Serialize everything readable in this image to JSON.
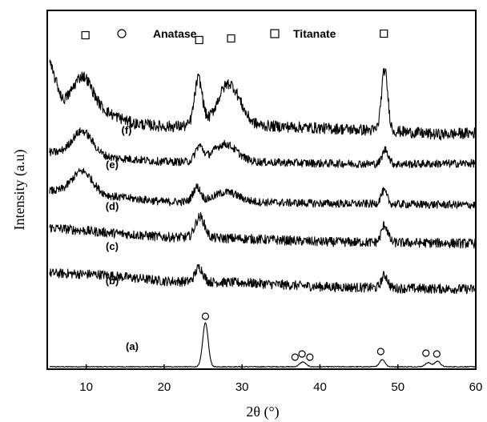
{
  "chart_data": {
    "type": "line",
    "title": "",
    "xlabel": "2θ (°)",
    "ylabel": "Intensity (a.u)",
    "xlim": [
      5,
      60
    ],
    "xticks": [
      "10",
      "20",
      "30",
      "40",
      "50",
      "60"
    ],
    "xtick_values": [
      10,
      20,
      30,
      40,
      50,
      60
    ],
    "yticks_shown": false,
    "grid": false,
    "legend": [
      {
        "name": "Anatase",
        "marker": "circle"
      },
      {
        "name": "Titanate",
        "marker": "square"
      }
    ],
    "legend_position": "top-center",
    "series": [
      {
        "name": "(a)",
        "offset": 0,
        "noise": 0.5,
        "peaks": [
          [
            25.3,
            55,
            0.35
          ],
          [
            37.8,
            6,
            0.4
          ],
          [
            48.0,
            9,
            0.35
          ],
          [
            53.9,
            5,
            0.4
          ],
          [
            55.1,
            7,
            0.35
          ]
        ],
        "markers": [
          {
            "type": "circle",
            "x": 25.3,
            "y": 63
          },
          {
            "type": "circle",
            "x": 36.8,
            "y": 12
          },
          {
            "type": "circle",
            "x": 37.7,
            "y": 16
          },
          {
            "type": "circle",
            "x": 38.7,
            "y": 12
          },
          {
            "type": "circle",
            "x": 47.8,
            "y": 19
          },
          {
            "type": "circle",
            "x": 53.6,
            "y": 17
          },
          {
            "type": "circle",
            "x": 55.0,
            "y": 16
          }
        ]
      },
      {
        "name": "(b)",
        "offset": 95,
        "noise": 6,
        "baseline": [
          [
            5,
            22
          ],
          [
            12,
            20
          ],
          [
            20,
            12
          ],
          [
            30,
            10
          ],
          [
            40,
            5
          ],
          [
            50,
            3
          ],
          [
            60,
            2
          ]
        ],
        "peaks": [
          [
            24.5,
            18,
            0.5
          ],
          [
            48.3,
            16,
            0.4
          ]
        ],
        "markers": []
      },
      {
        "name": "(c)",
        "offset": 152,
        "noise": 6,
        "baseline": [
          [
            5,
            22
          ],
          [
            12,
            16
          ],
          [
            20,
            10
          ],
          [
            30,
            8
          ],
          [
            40,
            4
          ],
          [
            50,
            3
          ],
          [
            60,
            2
          ]
        ],
        "peaks": [
          [
            24.6,
            26,
            0.6
          ],
          [
            48.3,
            22,
            0.4
          ]
        ],
        "markers": []
      },
      {
        "name": "(d)",
        "offset": 200,
        "noise": 5,
        "baseline": [
          [
            5,
            20
          ],
          [
            12,
            14
          ],
          [
            20,
            6
          ],
          [
            30,
            6
          ],
          [
            40,
            4
          ],
          [
            50,
            3
          ],
          [
            60,
            2
          ]
        ],
        "peaks": [
          [
            9.5,
            28,
            1.3
          ],
          [
            24.2,
            18,
            0.5
          ],
          [
            28.0,
            12,
            1.5
          ],
          [
            48.2,
            16,
            0.4
          ]
        ],
        "markers": []
      },
      {
        "name": "(e)",
        "offset": 250,
        "noise": 5,
        "baseline": [
          [
            5,
            18
          ],
          [
            12,
            12
          ],
          [
            20,
            6
          ],
          [
            30,
            6
          ],
          [
            40,
            4
          ],
          [
            50,
            3
          ],
          [
            60,
            4
          ]
        ],
        "peaks": [
          [
            9.5,
            30,
            1.3
          ],
          [
            24.5,
            18,
            0.5
          ],
          [
            27.8,
            22,
            1.5
          ],
          [
            48.4,
            18,
            0.4
          ]
        ],
        "markers": []
      },
      {
        "name": "(f)",
        "offset": 290,
        "noise": 7,
        "baseline": [
          [
            5.3,
            90
          ],
          [
            7,
            40
          ],
          [
            12,
            30
          ],
          [
            16,
            14
          ],
          [
            20,
            10
          ],
          [
            30,
            12
          ],
          [
            40,
            8
          ],
          [
            50,
            4
          ],
          [
            55,
            0
          ],
          [
            60,
            2
          ]
        ],
        "peaks": [
          [
            9.6,
            38,
            1.2
          ],
          [
            24.4,
            58,
            0.5
          ],
          [
            28.3,
            52,
            1.4
          ],
          [
            48.3,
            76,
            0.4
          ]
        ],
        "markers": [
          {
            "type": "square",
            "x": 9.9,
            "y": 124
          },
          {
            "type": "square",
            "x": 24.5,
            "y": 118
          },
          {
            "type": "square",
            "x": 28.6,
            "y": 120
          },
          {
            "type": "square",
            "x": 48.2,
            "y": 126
          }
        ]
      }
    ]
  }
}
